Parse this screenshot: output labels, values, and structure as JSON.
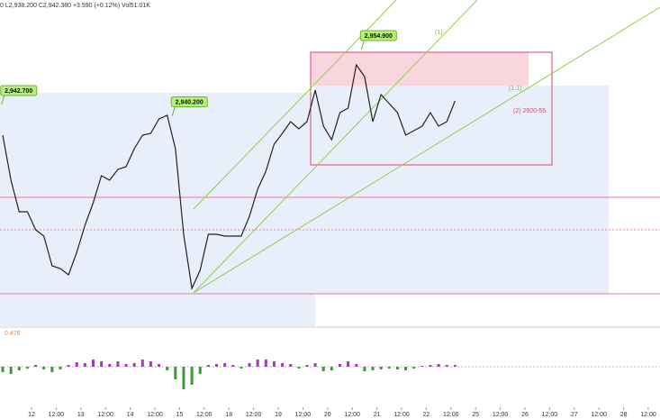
{
  "chart_data": {
    "type": "line",
    "header": "0 L2,938.200 C2,942.380 +3.590 (+0.12%) Vol51.01K",
    "x": [
      -14,
      -10,
      -6,
      -2,
      2,
      6,
      10,
      14,
      18,
      22,
      26,
      30,
      34,
      38,
      42,
      46,
      50,
      54,
      58,
      62,
      66,
      70,
      74,
      78,
      82,
      86,
      90,
      94,
      98,
      102,
      106,
      110,
      114,
      118,
      122,
      126,
      130,
      134,
      138,
      142,
      146,
      150,
      154,
      158,
      162,
      166,
      170,
      174,
      178,
      182,
      186,
      190,
      194,
      198,
      202,
      206
    ],
    "series": [
      {
        "color": "#222222",
        "values": [
          2936.9,
          2926.9,
          2919.9,
          2919.9,
          2915.9,
          2914.5,
          2907.9,
          2907.3,
          2905.9,
          2910.9,
          2916.9,
          2921.9,
          2927.9,
          2926.9,
          2929.3,
          2929.9,
          2933.9,
          2936.9,
          2937.3,
          2940.5,
          2941.3,
          2933.9,
          2914.9,
          2902.9,
          2906.9,
          2914.9,
          2914.9,
          2914.5,
          2914.5,
          2914.5,
          2918.9,
          2924.9,
          2928.9,
          2934.9,
          2937.3,
          2939.9,
          2938.3,
          2939.9,
          2946.9,
          2938.9,
          2935.9,
          2941.9,
          2942.9,
          2952.5,
          2949.9,
          2939.9,
          2945.9,
          2943.9,
          2941.9,
          2936.9,
          2937.9,
          2938.9,
          2941.9,
          2938.9,
          2939.9,
          2944.5
        ]
      }
    ],
    "xlim": [
      -15.33,
      305.7
    ],
    "ylim": [
      2894.9,
      2966.9
    ],
    "xticks": [
      {
        "value": 0,
        "label": "12"
      },
      {
        "value": 12,
        "label": "12:00"
      },
      {
        "value": 24,
        "label": "13"
      },
      {
        "value": 36,
        "label": "12:00"
      },
      {
        "value": 48,
        "label": "14"
      },
      {
        "value": 60,
        "label": "12:00"
      },
      {
        "value": 72,
        "label": "15"
      },
      {
        "value": 84,
        "label": "12:00"
      },
      {
        "value": 96,
        "label": "18"
      },
      {
        "value": 108,
        "label": "12:00"
      },
      {
        "value": 120,
        "label": "19"
      },
      {
        "value": 132,
        "label": "12:00"
      },
      {
        "value": 144,
        "label": "20"
      },
      {
        "value": 156,
        "label": "12:00"
      },
      {
        "value": 168,
        "label": "21"
      },
      {
        "value": 180,
        "label": "12:00"
      },
      {
        "value": 192,
        "label": "22"
      },
      {
        "value": 204,
        "label": "12:00"
      },
      {
        "value": 216,
        "label": "25"
      },
      {
        "value": 228,
        "label": "12:00"
      },
      {
        "value": 240,
        "label": "26"
      },
      {
        "value": 252,
        "label": "12:00"
      },
      {
        "value": 264,
        "label": "27"
      },
      {
        "value": 276,
        "label": "12:00"
      },
      {
        "value": 288,
        "label": "28"
      },
      {
        "value": 300,
        "label": "12:00"
      }
    ],
    "annotations": [
      {
        "x": -15,
        "value": 2942.7,
        "label": "2,942.700"
      },
      {
        "x": 68,
        "value": 2940.2,
        "label": "2,940.200"
      },
      {
        "x": 160,
        "value": 2954.9,
        "label": "2,954.900"
      }
    ],
    "texts": [
      "(1)",
      "(1.1)",
      "(2) 2920-55"
    ],
    "macd": {
      "label": {
        "value": 0.476,
        "label": "0.476"
      },
      "ylim": [
        -0.86,
        0.84
      ],
      "values": [
        -0.12,
        -0.16,
        -0.08,
        -0.04,
        0.04,
        -0.06,
        -0.12,
        -0.06,
        0.04,
        0.1,
        0.08,
        0.16,
        0.12,
        0.06,
        0.12,
        0.06,
        0.08,
        0.16,
        0.12,
        0.06,
        -0.08,
        -0.28,
        -0.5,
        -0.4,
        -0.16,
        0.04,
        0.06,
        0.08,
        0.04,
        -0.04,
        0.08,
        0.16,
        0.16,
        0.12,
        0.08,
        0.06,
        -0.04,
        0.04,
        0.08,
        -0.1,
        -0.08,
        0.06,
        0.12,
        0.06,
        -0.1,
        -0.08,
        -0.06,
        -0.04,
        -0.06,
        -0.08,
        -0.04,
        0.02,
        0.04,
        0.06,
        0.04,
        0.04
      ]
    }
  }
}
